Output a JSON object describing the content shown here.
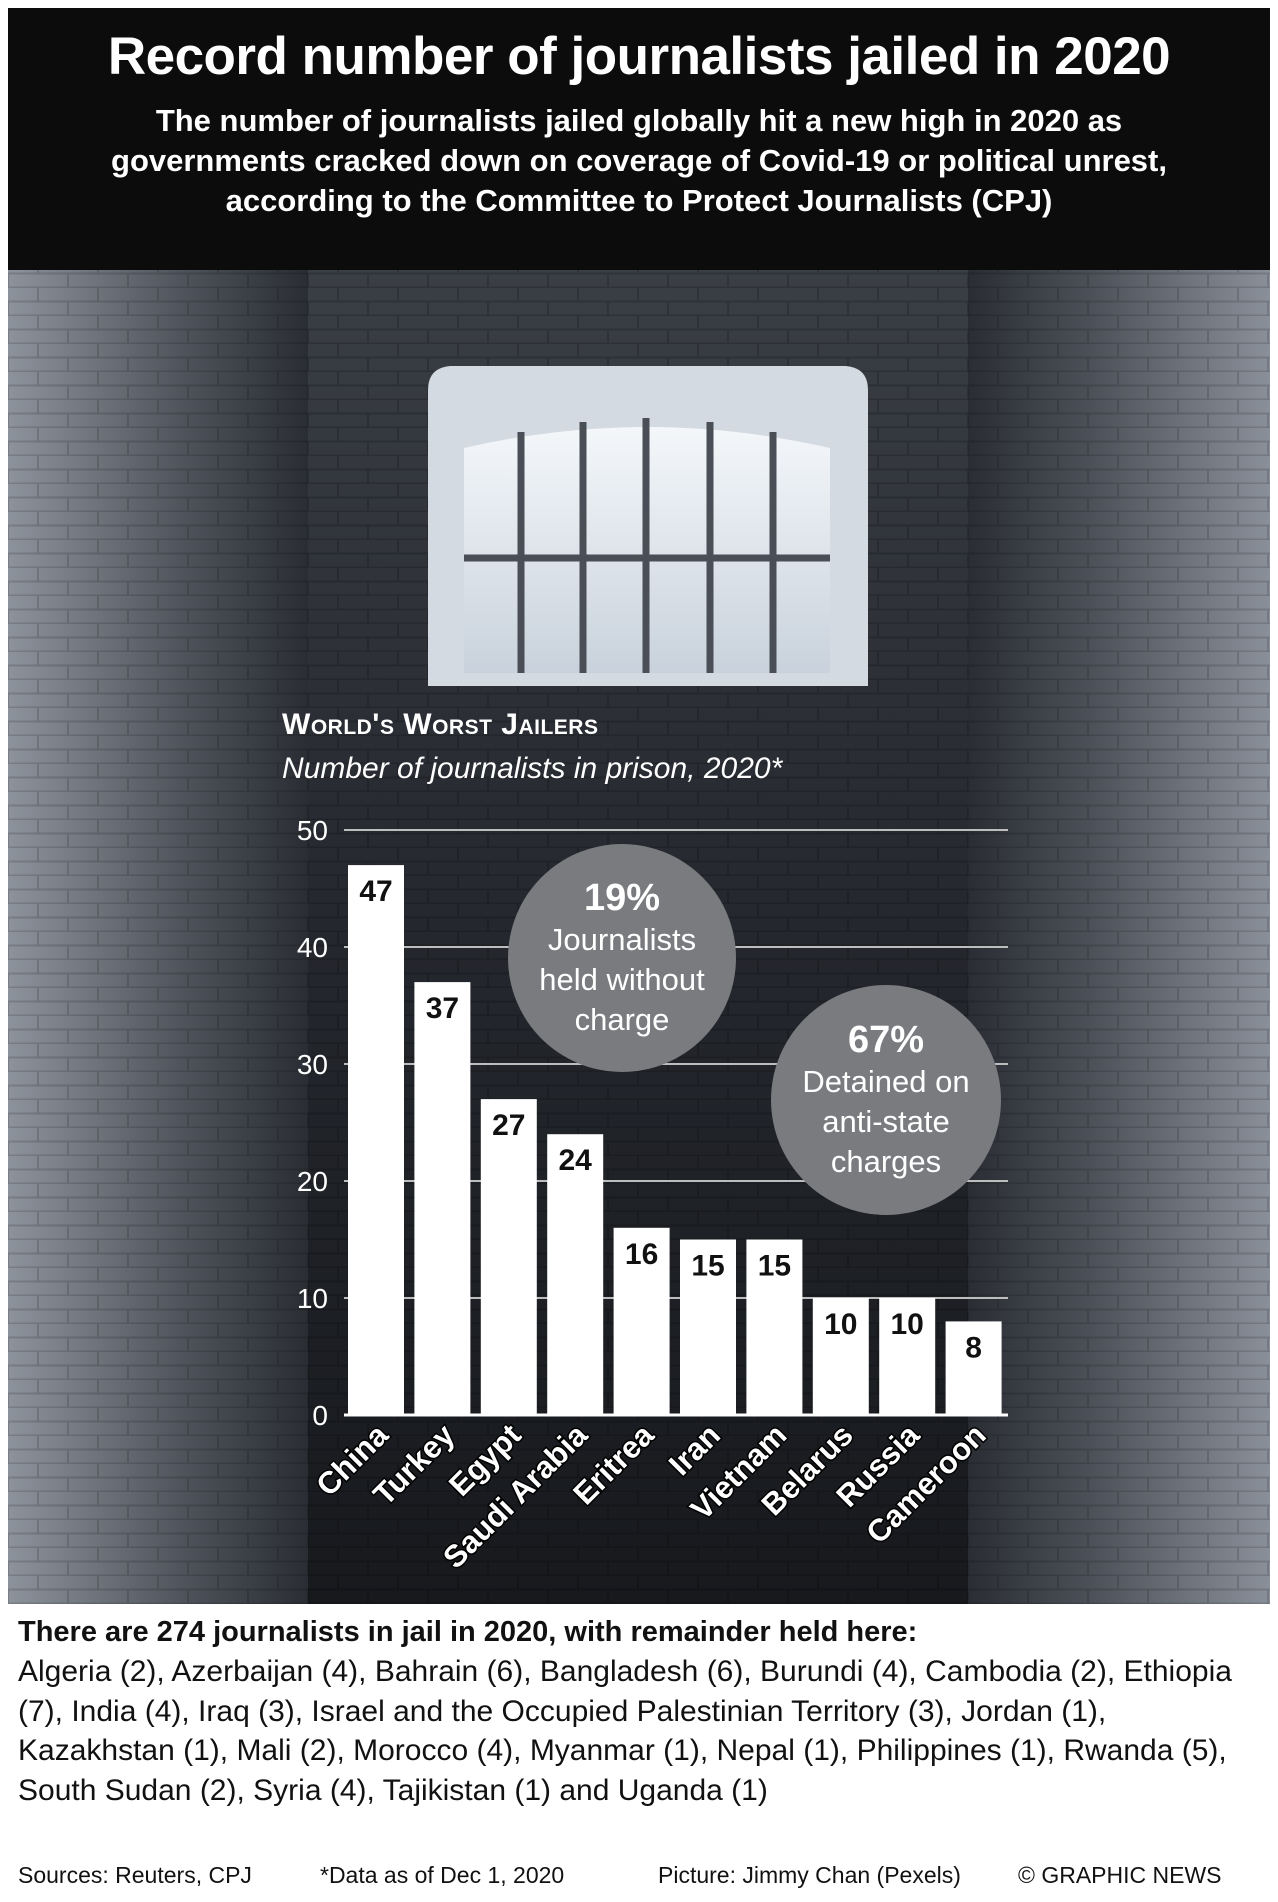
{
  "header": {
    "title": "Record number of journalists jailed in 2020",
    "subtitle": "The number of journalists jailed globally hit a new high in 2020 as governments cracked down on coverage of Covid-19 or political unrest, according to the Committee to Protect Journalists (CPJ)"
  },
  "chart_data": {
    "type": "bar",
    "title": "World's Worst Jailers",
    "subtitle": "Number of journalists in prison, 2020*",
    "categories": [
      "China",
      "Turkey",
      "Egypt",
      "Saudi Arabia",
      "Eritrea",
      "Iran",
      "Vietnam",
      "Belarus",
      "Russia",
      "Cameroon"
    ],
    "values": [
      47,
      37,
      27,
      24,
      16,
      15,
      15,
      10,
      10,
      8
    ],
    "ylim": [
      0,
      50
    ],
    "yticks": [
      0,
      10,
      20,
      30,
      40,
      50
    ],
    "grid": true,
    "bar_color": "#ffffff",
    "gridline_color": "#bdbdbd",
    "annotations": [
      {
        "pct": "19%",
        "text": "Journalists held without charge"
      },
      {
        "pct": "67%",
        "text": "Detained on anti-state charges"
      }
    ]
  },
  "remainder": {
    "title": "There are 274 journalists in jail in 2020, with remainder held here:",
    "list": "Algeria (2), Azerbaijan (4), Bahrain (6), Bangladesh (6), Burundi (4), Cambodia (2), Ethiopia (7), India (4), Iraq (3), Israel and the Occupied Palestinian Territory (3), Jordan (1), Kazakhstan (1), Mali (2), Morocco (4), Myanmar (1), Nepal (1), Philippines (1), Rwanda (5), South Sudan (2), Syria (4), Tajikistan (1) and Uganda (1)"
  },
  "footer": {
    "sources": "Sources: Reuters, CPJ",
    "note": "*Data as of Dec 1, 2020",
    "picture": "Picture: Jimmy Chan (Pexels)",
    "credit": "© GRAPHIC NEWS"
  },
  "colors": {
    "background_dark": "#0c0c0d",
    "wall": "#2a2d33",
    "bubble": "#7a7b7f",
    "text_light": "#ffffff"
  }
}
